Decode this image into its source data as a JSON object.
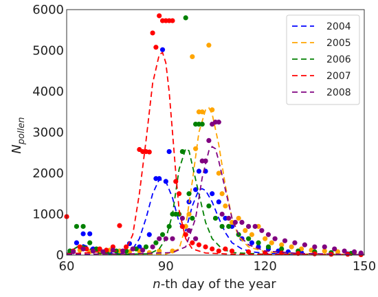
{
  "chart_data": {
    "type": "scatter",
    "xlabel_italic": "n",
    "xlabel_rest": "-th day of the year",
    "ylabel_main": "N",
    "ylabel_sub": "pollen",
    "xlim": [
      60,
      150
    ],
    "ylim": [
      0,
      6000
    ],
    "xticks": [
      60,
      90,
      120,
      150
    ],
    "yticks": [
      0,
      1000,
      2000,
      3000,
      4000,
      5000,
      6000
    ],
    "grid": false,
    "legend_position": "top-right",
    "series": [
      {
        "name": "2004",
        "color": "#0000ff",
        "points": [
          [
            61,
            100
          ],
          [
            63,
            300
          ],
          [
            65,
            520
          ],
          [
            67,
            520
          ],
          [
            68,
            150
          ],
          [
            70,
            80
          ],
          [
            73,
            60
          ],
          [
            76,
            100
          ],
          [
            79,
            280
          ],
          [
            82,
            200
          ],
          [
            85,
            500
          ],
          [
            87,
            1870
          ],
          [
            88,
            1870
          ],
          [
            89,
            5020
          ],
          [
            90,
            1800
          ],
          [
            91,
            2530
          ],
          [
            93,
            1000
          ],
          [
            95,
            700
          ],
          [
            97,
            1300
          ],
          [
            99,
            1600
          ],
          [
            100,
            2050
          ],
          [
            102,
            2050
          ],
          [
            104,
            1500
          ],
          [
            106,
            1300
          ],
          [
            108,
            900
          ],
          [
            110,
            700
          ],
          [
            113,
            400
          ],
          [
            116,
            300
          ],
          [
            118,
            200
          ],
          [
            121,
            150
          ],
          [
            124,
            100
          ],
          [
            127,
            80
          ],
          [
            131,
            60
          ],
          [
            135,
            50
          ],
          [
            140,
            40
          ],
          [
            145,
            30
          ],
          [
            149,
            20
          ]
        ],
        "curve": [
          [
            60,
            40
          ],
          [
            62,
            140
          ],
          [
            64,
            230
          ],
          [
            65,
            250
          ],
          [
            66,
            220
          ],
          [
            68,
            140
          ],
          [
            70,
            70
          ],
          [
            72,
            40
          ],
          [
            75,
            30
          ],
          [
            78,
            60
          ],
          [
            80,
            150
          ],
          [
            82,
            400
          ],
          [
            84,
            900
          ],
          [
            86,
            1500
          ],
          [
            88,
            1850
          ],
          [
            90,
            1800
          ],
          [
            92,
            1400
          ],
          [
            94,
            800
          ],
          [
            96,
            600
          ],
          [
            98,
            1200
          ],
          [
            100,
            1600
          ],
          [
            101,
            1620
          ],
          [
            102,
            1580
          ],
          [
            104,
            1300
          ],
          [
            106,
            900
          ],
          [
            108,
            550
          ],
          [
            110,
            300
          ],
          [
            113,
            150
          ],
          [
            116,
            80
          ],
          [
            120,
            40
          ],
          [
            130,
            20
          ],
          [
            150,
            10
          ]
        ]
      },
      {
        "name": "2005",
        "color": "#ffa500",
        "points": [
          [
            61,
            60
          ],
          [
            64,
            120
          ],
          [
            67,
            80
          ],
          [
            70,
            60
          ],
          [
            73,
            120
          ],
          [
            76,
            100
          ],
          [
            79,
            80
          ],
          [
            82,
            100
          ],
          [
            85,
            60
          ],
          [
            88,
            100
          ],
          [
            92,
            100
          ],
          [
            96,
            700
          ],
          [
            97,
            1000
          ],
          [
            98,
            4850
          ],
          [
            99,
            2600
          ],
          [
            100,
            3500
          ],
          [
            101,
            3500
          ],
          [
            103,
            5130
          ],
          [
            104,
            3550
          ],
          [
            106,
            2000
          ],
          [
            107,
            1500
          ],
          [
            108,
            1200
          ],
          [
            110,
            800
          ],
          [
            112,
            900
          ],
          [
            114,
            600
          ],
          [
            116,
            500
          ],
          [
            118,
            700
          ],
          [
            120,
            400
          ],
          [
            122,
            300
          ],
          [
            125,
            250
          ],
          [
            128,
            200
          ],
          [
            131,
            150
          ],
          [
            134,
            120
          ],
          [
            138,
            100
          ],
          [
            142,
            80
          ],
          [
            147,
            60
          ],
          [
            149,
            30
          ]
        ],
        "curve": [
          [
            60,
            10
          ],
          [
            80,
            10
          ],
          [
            90,
            20
          ],
          [
            94,
            150
          ],
          [
            96,
            700
          ],
          [
            98,
            1800
          ],
          [
            100,
            3000
          ],
          [
            102,
            3550
          ],
          [
            103,
            3600
          ],
          [
            104,
            3450
          ],
          [
            106,
            2700
          ],
          [
            108,
            1700
          ],
          [
            110,
            900
          ],
          [
            112,
            450
          ],
          [
            115,
            200
          ],
          [
            120,
            80
          ],
          [
            130,
            30
          ],
          [
            150,
            10
          ]
        ]
      },
      {
        "name": "2006",
        "color": "#008000",
        "points": [
          [
            61,
            100
          ],
          [
            63,
            700
          ],
          [
            65,
            700
          ],
          [
            67,
            300
          ],
          [
            69,
            150
          ],
          [
            72,
            80
          ],
          [
            75,
            100
          ],
          [
            78,
            100
          ],
          [
            81,
            150
          ],
          [
            84,
            200
          ],
          [
            87,
            300
          ],
          [
            89,
            500
          ],
          [
            91,
            700
          ],
          [
            92,
            1000
          ],
          [
            93,
            1000
          ],
          [
            94,
            1000
          ],
          [
            95,
            2530
          ],
          [
            96,
            5800
          ],
          [
            97,
            1500
          ],
          [
            98,
            900
          ],
          [
            99,
            3200
          ],
          [
            100,
            3200
          ],
          [
            101,
            3200
          ],
          [
            103,
            1200
          ],
          [
            105,
            900
          ],
          [
            107,
            700
          ],
          [
            109,
            700
          ],
          [
            112,
            500
          ],
          [
            115,
            400
          ],
          [
            118,
            300
          ],
          [
            121,
            200
          ],
          [
            125,
            150
          ],
          [
            130,
            100
          ],
          [
            135,
            80
          ],
          [
            140,
            60
          ],
          [
            146,
            40
          ],
          [
            149,
            20
          ]
        ],
        "curve": [
          [
            60,
            20
          ],
          [
            62,
            140
          ],
          [
            64,
            240
          ],
          [
            66,
            200
          ],
          [
            68,
            100
          ],
          [
            70,
            40
          ],
          [
            75,
            20
          ],
          [
            85,
            30
          ],
          [
            88,
            150
          ],
          [
            90,
            400
          ],
          [
            92,
            1000
          ],
          [
            94,
            2100
          ],
          [
            96,
            2600
          ],
          [
            97,
            2550
          ],
          [
            98,
            2200
          ],
          [
            100,
            1500
          ],
          [
            102,
            800
          ],
          [
            104,
            400
          ],
          [
            107,
            150
          ],
          [
            110,
            60
          ],
          [
            120,
            20
          ],
          [
            150,
            10
          ]
        ]
      },
      {
        "name": "2007",
        "color": "#ff0000",
        "points": [
          [
            60,
            940
          ],
          [
            62,
            100
          ],
          [
            64,
            200
          ],
          [
            66,
            150
          ],
          [
            68,
            100
          ],
          [
            70,
            150
          ],
          [
            72,
            120
          ],
          [
            74,
            200
          ],
          [
            76,
            720
          ],
          [
            78,
            200
          ],
          [
            80,
            150
          ],
          [
            82,
            2580
          ],
          [
            83,
            2530
          ],
          [
            84,
            2530
          ],
          [
            85,
            2520
          ],
          [
            86,
            5430
          ],
          [
            87,
            5080
          ],
          [
            88,
            5850
          ],
          [
            89,
            5730
          ],
          [
            90,
            5730
          ],
          [
            91,
            5730
          ],
          [
            92,
            5730
          ],
          [
            93,
            1800
          ],
          [
            94,
            1500
          ],
          [
            95,
            700
          ],
          [
            96,
            500
          ],
          [
            98,
            300
          ],
          [
            100,
            250
          ],
          [
            102,
            200
          ],
          [
            104,
            150
          ],
          [
            106,
            100
          ],
          [
            108,
            150
          ],
          [
            110,
            100
          ],
          [
            115,
            80
          ],
          [
            120,
            60
          ],
          [
            125,
            50
          ],
          [
            130,
            40
          ],
          [
            135,
            30
          ],
          [
            140,
            20
          ],
          [
            145,
            20
          ],
          [
            149,
            10
          ]
        ],
        "curve": [
          [
            60,
            30
          ],
          [
            65,
            50
          ],
          [
            70,
            80
          ],
          [
            75,
            100
          ],
          [
            78,
            150
          ],
          [
            80,
            500
          ],
          [
            82,
            1500
          ],
          [
            84,
            2800
          ],
          [
            86,
            4200
          ],
          [
            88,
            4900
          ],
          [
            89,
            4950
          ],
          [
            90,
            4700
          ],
          [
            91,
            4000
          ],
          [
            92,
            3000
          ],
          [
            93,
            2000
          ],
          [
            94,
            1100
          ],
          [
            96,
            400
          ],
          [
            98,
            150
          ],
          [
            102,
            50
          ],
          [
            110,
            20
          ],
          [
            150,
            10
          ]
        ]
      },
      {
        "name": "2008",
        "color": "#800080",
        "points": [
          [
            62,
            80
          ],
          [
            65,
            150
          ],
          [
            68,
            100
          ],
          [
            71,
            80
          ],
          [
            74,
            120
          ],
          [
            77,
            100
          ],
          [
            80,
            150
          ],
          [
            83,
            120
          ],
          [
            86,
            200
          ],
          [
            88,
            400
          ],
          [
            90,
            400
          ],
          [
            92,
            400
          ],
          [
            95,
            900
          ],
          [
            97,
            600
          ],
          [
            99,
            400
          ],
          [
            101,
            2300
          ],
          [
            102,
            2300
          ],
          [
            103,
            2800
          ],
          [
            104,
            3200
          ],
          [
            105,
            3250
          ],
          [
            106,
            3250
          ],
          [
            107,
            1000
          ],
          [
            109,
            900
          ],
          [
            111,
            800
          ],
          [
            113,
            800
          ],
          [
            115,
            700
          ],
          [
            117,
            700
          ],
          [
            119,
            600
          ],
          [
            121,
            500
          ],
          [
            123,
            400
          ],
          [
            126,
            350
          ],
          [
            129,
            300
          ],
          [
            132,
            250
          ],
          [
            135,
            200
          ],
          [
            138,
            200
          ],
          [
            141,
            150
          ],
          [
            144,
            100
          ],
          [
            147,
            80
          ],
          [
            149,
            50
          ]
        ],
        "curve": [
          [
            60,
            20
          ],
          [
            80,
            30
          ],
          [
            92,
            60
          ],
          [
            96,
            200
          ],
          [
            99,
            900
          ],
          [
            101,
            1900
          ],
          [
            103,
            2550
          ],
          [
            104,
            2650
          ],
          [
            105,
            2600
          ],
          [
            106,
            2300
          ],
          [
            108,
            1600
          ],
          [
            110,
            900
          ],
          [
            112,
            500
          ],
          [
            115,
            250
          ],
          [
            120,
            100
          ],
          [
            130,
            40
          ],
          [
            150,
            10
          ]
        ]
      }
    ]
  }
}
